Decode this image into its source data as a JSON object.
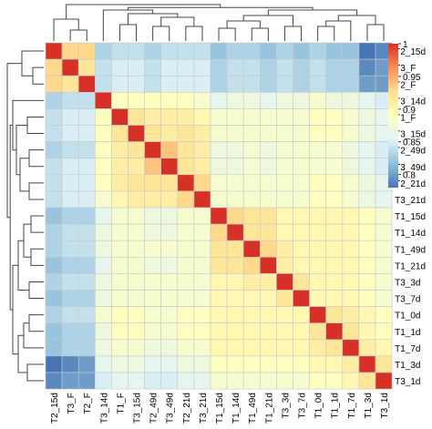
{
  "chart_data": {
    "type": "heatmap",
    "title": "",
    "labels": [
      "T2_15d",
      "T3_F",
      "T2_F",
      "T3_14d",
      "T1_F",
      "T3_15d",
      "T2_49d",
      "T3_49d",
      "T2_21d",
      "T3_21d",
      "T1_15d",
      "T1_14d",
      "T1_49d",
      "T1_21d",
      "T3_3d",
      "T3_7d",
      "T1_0d",
      "T1_1d",
      "T1_7d",
      "T1_3d",
      "T3_1d"
    ],
    "color_scale": {
      "min": 0.78,
      "max": 1,
      "ticks": [
        "1",
        "0.95",
        "0.9",
        "0.85",
        "0.8"
      ],
      "tick_values": [
        1,
        0.95,
        0.9,
        0.85,
        0.8
      ],
      "colors": [
        "#4575b4",
        "#91bfdb",
        "#e0f3f8",
        "#ffffbf",
        "#fee090",
        "#fc8d59",
        "#d73027"
      ]
    },
    "matrix": [
      [
        1.0,
        0.93,
        0.93,
        0.83,
        0.84,
        0.84,
        0.83,
        0.84,
        0.84,
        0.84,
        0.82,
        0.83,
        0.83,
        0.82,
        0.83,
        0.82,
        0.83,
        0.82,
        0.82,
        0.78,
        0.79
      ],
      [
        0.93,
        1.0,
        0.92,
        0.84,
        0.85,
        0.85,
        0.84,
        0.85,
        0.85,
        0.85,
        0.83,
        0.84,
        0.84,
        0.83,
        0.84,
        0.83,
        0.84,
        0.83,
        0.83,
        0.79,
        0.8
      ],
      [
        0.93,
        0.92,
        1.0,
        0.84,
        0.85,
        0.85,
        0.84,
        0.85,
        0.85,
        0.85,
        0.83,
        0.84,
        0.84,
        0.83,
        0.84,
        0.83,
        0.84,
        0.83,
        0.83,
        0.8,
        0.8
      ],
      [
        0.83,
        0.84,
        0.84,
        1.0,
        0.89,
        0.89,
        0.89,
        0.89,
        0.89,
        0.88,
        0.86,
        0.87,
        0.87,
        0.86,
        0.87,
        0.87,
        0.88,
        0.87,
        0.87,
        0.86,
        0.85
      ],
      [
        0.84,
        0.85,
        0.85,
        0.89,
        1.0,
        0.92,
        0.91,
        0.91,
        0.91,
        0.9,
        0.88,
        0.88,
        0.88,
        0.88,
        0.88,
        0.88,
        0.89,
        0.89,
        0.88,
        0.87,
        0.86
      ],
      [
        0.84,
        0.85,
        0.85,
        0.89,
        0.92,
        1.0,
        0.92,
        0.91,
        0.92,
        0.91,
        0.88,
        0.88,
        0.88,
        0.88,
        0.88,
        0.88,
        0.89,
        0.89,
        0.88,
        0.87,
        0.86
      ],
      [
        0.83,
        0.84,
        0.84,
        0.89,
        0.91,
        0.92,
        1.0,
        0.94,
        0.92,
        0.91,
        0.87,
        0.87,
        0.88,
        0.87,
        0.88,
        0.88,
        0.88,
        0.88,
        0.87,
        0.86,
        0.85
      ],
      [
        0.84,
        0.85,
        0.85,
        0.89,
        0.91,
        0.91,
        0.94,
        1.0,
        0.92,
        0.91,
        0.87,
        0.87,
        0.88,
        0.87,
        0.88,
        0.88,
        0.88,
        0.88,
        0.87,
        0.86,
        0.85
      ],
      [
        0.84,
        0.85,
        0.85,
        0.89,
        0.91,
        0.92,
        0.92,
        0.92,
        1.0,
        0.93,
        0.88,
        0.88,
        0.88,
        0.88,
        0.88,
        0.88,
        0.89,
        0.89,
        0.88,
        0.87,
        0.86
      ],
      [
        0.84,
        0.85,
        0.85,
        0.88,
        0.9,
        0.91,
        0.91,
        0.91,
        0.93,
        1.0,
        0.88,
        0.88,
        0.88,
        0.88,
        0.88,
        0.88,
        0.89,
        0.89,
        0.88,
        0.87,
        0.86
      ],
      [
        0.82,
        0.83,
        0.83,
        0.86,
        0.88,
        0.88,
        0.87,
        0.87,
        0.88,
        0.88,
        1.0,
        0.93,
        0.92,
        0.92,
        0.9,
        0.9,
        0.9,
        0.9,
        0.9,
        0.89,
        0.88
      ],
      [
        0.83,
        0.84,
        0.84,
        0.87,
        0.88,
        0.88,
        0.87,
        0.87,
        0.88,
        0.88,
        0.93,
        1.0,
        0.92,
        0.92,
        0.9,
        0.9,
        0.9,
        0.9,
        0.9,
        0.89,
        0.88
      ],
      [
        0.83,
        0.84,
        0.84,
        0.87,
        0.88,
        0.88,
        0.88,
        0.88,
        0.88,
        0.88,
        0.92,
        0.92,
        1.0,
        0.93,
        0.91,
        0.9,
        0.9,
        0.9,
        0.9,
        0.89,
        0.88
      ],
      [
        0.82,
        0.83,
        0.83,
        0.86,
        0.88,
        0.88,
        0.87,
        0.87,
        0.88,
        0.88,
        0.92,
        0.92,
        0.93,
        1.0,
        0.91,
        0.9,
        0.9,
        0.9,
        0.9,
        0.89,
        0.88
      ],
      [
        0.83,
        0.84,
        0.84,
        0.87,
        0.88,
        0.88,
        0.88,
        0.88,
        0.88,
        0.88,
        0.9,
        0.9,
        0.91,
        0.91,
        1.0,
        0.92,
        0.9,
        0.9,
        0.9,
        0.89,
        0.88
      ],
      [
        0.82,
        0.83,
        0.83,
        0.87,
        0.88,
        0.88,
        0.88,
        0.88,
        0.88,
        0.88,
        0.9,
        0.9,
        0.9,
        0.9,
        0.92,
        1.0,
        0.9,
        0.9,
        0.9,
        0.89,
        0.88
      ],
      [
        0.83,
        0.84,
        0.84,
        0.88,
        0.89,
        0.89,
        0.88,
        0.88,
        0.89,
        0.89,
        0.9,
        0.9,
        0.9,
        0.9,
        0.9,
        0.9,
        1.0,
        0.92,
        0.91,
        0.9,
        0.89
      ],
      [
        0.82,
        0.83,
        0.83,
        0.87,
        0.89,
        0.89,
        0.88,
        0.88,
        0.89,
        0.89,
        0.9,
        0.9,
        0.9,
        0.9,
        0.9,
        0.9,
        0.92,
        1.0,
        0.92,
        0.9,
        0.89
      ],
      [
        0.82,
        0.83,
        0.83,
        0.87,
        0.88,
        0.88,
        0.87,
        0.87,
        0.88,
        0.88,
        0.9,
        0.9,
        0.9,
        0.9,
        0.9,
        0.9,
        0.91,
        0.92,
        1.0,
        0.91,
        0.9
      ],
      [
        0.78,
        0.79,
        0.8,
        0.86,
        0.87,
        0.87,
        0.86,
        0.86,
        0.87,
        0.87,
        0.89,
        0.89,
        0.89,
        0.89,
        0.89,
        0.89,
        0.9,
        0.9,
        0.91,
        1.0,
        0.92
      ],
      [
        0.79,
        0.8,
        0.8,
        0.85,
        0.86,
        0.86,
        0.85,
        0.85,
        0.86,
        0.86,
        0.88,
        0.88,
        0.88,
        0.88,
        0.88,
        0.88,
        0.89,
        0.89,
        0.9,
        0.92,
        1.0
      ]
    ],
    "row_dendrogram": true,
    "col_dendrogram": true,
    "legend_position": "right"
  }
}
